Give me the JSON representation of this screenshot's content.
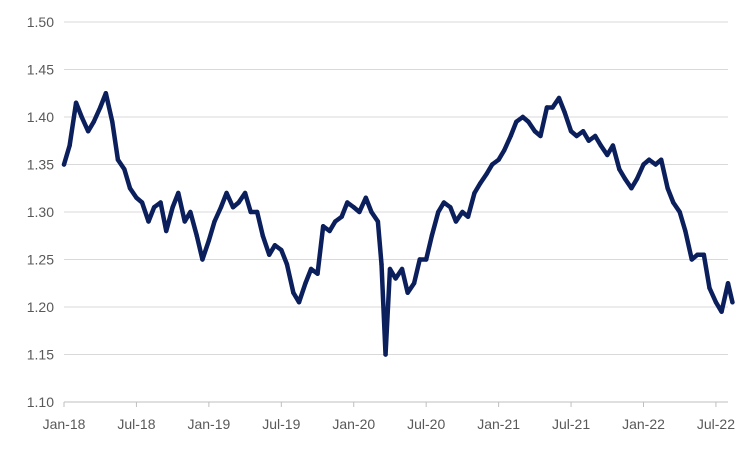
{
  "chart_data": {
    "type": "line",
    "title": "",
    "xlabel": "",
    "ylabel": "",
    "x_tick_labels": [
      "Jan-18",
      "Jul-18",
      "Jan-19",
      "Jul-19",
      "Jan-20",
      "Jul-20",
      "Jan-21",
      "Jul-21",
      "Jan-22",
      "Jul-22"
    ],
    "y_tick_labels": [
      "1.10",
      "1.15",
      "1.20",
      "1.25",
      "1.30",
      "1.35",
      "1.40",
      "1.45",
      "1.50"
    ],
    "ylim": [
      1.1,
      1.5
    ],
    "xlim": [
      "2018-01",
      "2022-08"
    ],
    "grid": "horizontal",
    "legend": "none",
    "colors": {
      "line": "#0b1f5c",
      "grid": "#d9d9d9",
      "axis": "#bfbfbf",
      "tick_text": "#595959"
    },
    "series": [
      {
        "x": [
          "2018-01-01",
          "2018-01-15",
          "2018-02-01",
          "2018-02-15",
          "2018-03-01",
          "2018-03-15",
          "2018-04-01",
          "2018-04-15",
          "2018-05-01",
          "2018-05-15",
          "2018-06-01",
          "2018-06-15",
          "2018-07-01",
          "2018-07-15",
          "2018-08-01",
          "2018-08-15",
          "2018-09-01",
          "2018-09-15",
          "2018-10-01",
          "2018-10-15",
          "2018-11-01",
          "2018-11-15",
          "2018-12-01",
          "2018-12-15",
          "2019-01-01",
          "2019-01-15",
          "2019-02-01",
          "2019-02-15",
          "2019-03-01",
          "2019-03-15",
          "2019-04-01",
          "2019-04-15",
          "2019-05-01",
          "2019-05-15",
          "2019-06-01",
          "2019-06-15",
          "2019-07-01",
          "2019-07-15",
          "2019-08-01",
          "2019-08-15",
          "2019-09-01",
          "2019-09-15",
          "2019-10-01",
          "2019-10-15",
          "2019-11-01",
          "2019-11-15",
          "2019-12-01",
          "2019-12-15",
          "2020-01-01",
          "2020-01-15",
          "2020-02-01",
          "2020-02-15",
          "2020-03-01",
          "2020-03-10",
          "2020-03-20",
          "2020-04-01",
          "2020-04-15",
          "2020-05-01",
          "2020-05-15",
          "2020-06-01",
          "2020-06-15",
          "2020-07-01",
          "2020-07-15",
          "2020-08-01",
          "2020-08-15",
          "2020-09-01",
          "2020-09-15",
          "2020-10-01",
          "2020-10-15",
          "2020-11-01",
          "2020-11-15",
          "2020-12-01",
          "2020-12-15",
          "2021-01-01",
          "2021-01-15",
          "2021-02-01",
          "2021-02-15",
          "2021-03-01",
          "2021-03-15",
          "2021-04-01",
          "2021-04-15",
          "2021-05-01",
          "2021-05-15",
          "2021-06-01",
          "2021-06-15",
          "2021-07-01",
          "2021-07-15",
          "2021-08-01",
          "2021-08-15",
          "2021-09-01",
          "2021-09-15",
          "2021-10-01",
          "2021-10-15",
          "2021-11-01",
          "2021-11-15",
          "2021-12-01",
          "2021-12-15",
          "2022-01-01",
          "2022-01-15",
          "2022-02-01",
          "2022-02-15",
          "2022-03-01",
          "2022-03-15",
          "2022-04-01",
          "2022-04-15",
          "2022-05-01",
          "2022-05-15",
          "2022-06-01",
          "2022-06-15",
          "2022-07-01",
          "2022-07-15",
          "2022-08-01",
          "2022-08-12"
        ],
        "values": [
          1.35,
          1.37,
          1.415,
          1.4,
          1.385,
          1.395,
          1.41,
          1.425,
          1.395,
          1.355,
          1.345,
          1.325,
          1.315,
          1.31,
          1.29,
          1.305,
          1.31,
          1.28,
          1.305,
          1.32,
          1.29,
          1.3,
          1.275,
          1.25,
          1.27,
          1.29,
          1.305,
          1.32,
          1.305,
          1.31,
          1.32,
          1.3,
          1.3,
          1.275,
          1.255,
          1.265,
          1.26,
          1.245,
          1.215,
          1.205,
          1.225,
          1.24,
          1.235,
          1.285,
          1.28,
          1.29,
          1.295,
          1.31,
          1.305,
          1.3,
          1.315,
          1.3,
          1.29,
          1.245,
          1.15,
          1.24,
          1.23,
          1.24,
          1.215,
          1.225,
          1.25,
          1.25,
          1.275,
          1.3,
          1.31,
          1.305,
          1.29,
          1.3,
          1.295,
          1.32,
          1.33,
          1.34,
          1.35,
          1.355,
          1.365,
          1.38,
          1.395,
          1.4,
          1.395,
          1.385,
          1.38,
          1.41,
          1.41,
          1.42,
          1.405,
          1.385,
          1.38,
          1.385,
          1.375,
          1.38,
          1.37,
          1.36,
          1.37,
          1.345,
          1.335,
          1.325,
          1.335,
          1.35,
          1.355,
          1.35,
          1.355,
          1.325,
          1.31,
          1.3,
          1.28,
          1.25,
          1.255,
          1.255,
          1.22,
          1.205,
          1.195,
          1.225,
          1.205
        ]
      }
    ]
  }
}
